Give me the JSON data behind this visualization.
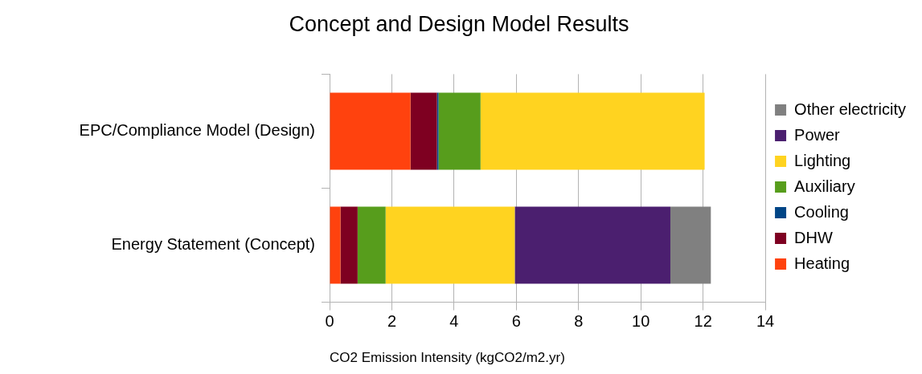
{
  "chart_data": {
    "type": "bar",
    "orientation": "horizontal",
    "stacked": true,
    "title": "Concept and Design Model Results",
    "xlabel": "CO2 Emission Intensity (kgCO2/m2.yr)",
    "categories": [
      "EPC/Compliance Model (Design)",
      "Energy Statement (Concept)"
    ],
    "series": [
      {
        "name": "Heating",
        "color": "#ff420e",
        "values": [
          2.6,
          0.35
        ]
      },
      {
        "name": "DHW",
        "color": "#7e0021",
        "values": [
          0.85,
          0.55
        ]
      },
      {
        "name": "Cooling",
        "color": "#004586",
        "values": [
          0.05,
          0
        ]
      },
      {
        "name": "Auxiliary",
        "color": "#579d1c",
        "values": [
          1.35,
          0.9
        ]
      },
      {
        "name": "Lighting",
        "color": "#ffd320",
        "values": [
          7.2,
          4.15
        ]
      },
      {
        "name": "Power",
        "color": "#4b1f6f",
        "values": [
          0,
          5.0
        ]
      },
      {
        "name": "Other electricity",
        "color": "#808080",
        "values": [
          0,
          1.3
        ]
      }
    ],
    "xlim": [
      0,
      14
    ],
    "xticks": [
      0,
      2,
      4,
      6,
      8,
      10,
      12,
      14
    ],
    "grid": "x",
    "legend": "right"
  }
}
